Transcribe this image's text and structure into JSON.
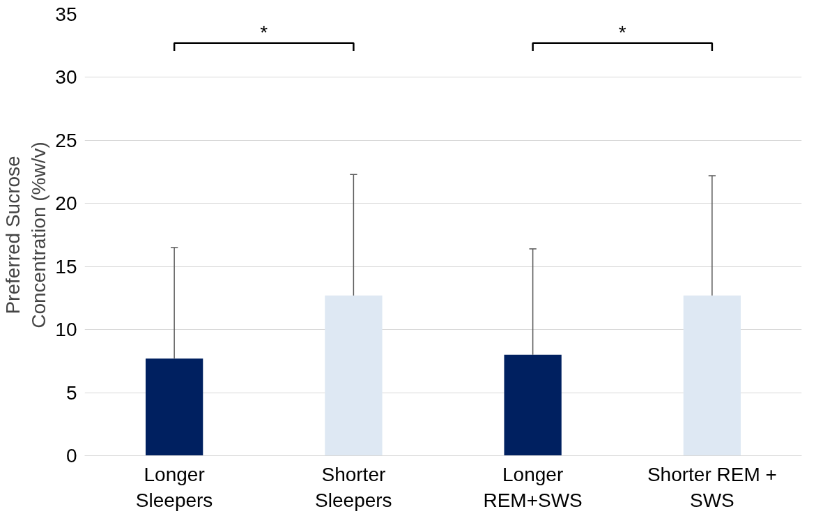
{
  "chart_data": {
    "type": "bar",
    "ylabel": "Preferred Sucrose Concentration (%w/v)",
    "categories": [
      "Longer Sleepers",
      "Shorter Sleepers",
      "Longer REM+SWS",
      "Shorter REM + SWS"
    ],
    "values": [
      7.7,
      12.7,
      8.0,
      12.7
    ],
    "colors": [
      "#002060",
      "#dee8f3",
      "#002060",
      "#dee8f3"
    ],
    "errors": [
      [
        7.7,
        16.5
      ],
      [
        12.7,
        22.3
      ],
      [
        8.0,
        16.4
      ],
      [
        12.7,
        22.2
      ]
    ],
    "ylim": [
      0,
      35
    ],
    "yticks": [
      0,
      5,
      10,
      15,
      20,
      25,
      30,
      35
    ],
    "grid": "y",
    "annotations": [
      "*",
      "*"
    ]
  }
}
